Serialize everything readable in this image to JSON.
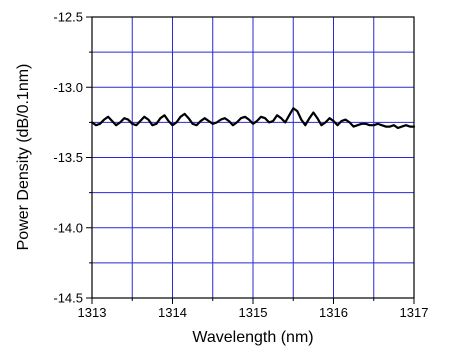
{
  "chart_data": {
    "type": "line",
    "title": "",
    "xlabel": "Wavelength (nm)",
    "ylabel": "Power Density (dB/0.1nm)",
    "xlim": [
      1313,
      1317
    ],
    "ylim": [
      -14.5,
      -12.5
    ],
    "x_ticks": [
      1313,
      1314,
      1315,
      1316,
      1317
    ],
    "x_tick_labels": [
      "1313",
      "1314",
      "1315",
      "1316",
      "1317"
    ],
    "y_ticks": [
      -12.5,
      -13.0,
      -13.5,
      -14.0,
      -14.5
    ],
    "y_tick_labels": [
      "-12.5",
      "-13.0",
      "-13.5",
      "-14.0",
      "-14.5"
    ],
    "grid": true,
    "grid_color": "#2a2ad4",
    "line_color": "#000000",
    "series": [
      {
        "x": [
          1313.0,
          1313.05,
          1313.1,
          1313.15,
          1313.2,
          1313.25,
          1313.3,
          1313.35,
          1313.4,
          1313.45,
          1313.5,
          1313.55,
          1313.6,
          1313.65,
          1313.7,
          1313.75,
          1313.8,
          1313.85,
          1313.9,
          1313.95,
          1314.0,
          1314.05,
          1314.1,
          1314.15,
          1314.2,
          1314.25,
          1314.3,
          1314.35,
          1314.4,
          1314.45,
          1314.5,
          1314.55,
          1314.6,
          1314.65,
          1314.7,
          1314.75,
          1314.8,
          1314.85,
          1314.9,
          1314.95,
          1315.0,
          1315.05,
          1315.1,
          1315.15,
          1315.2,
          1315.25,
          1315.3,
          1315.35,
          1315.4,
          1315.45,
          1315.5,
          1315.55,
          1315.6,
          1315.65,
          1315.7,
          1315.75,
          1315.8,
          1315.85,
          1315.9,
          1315.95,
          1316.0,
          1316.05,
          1316.1,
          1316.15,
          1316.2,
          1316.25,
          1316.3,
          1316.35,
          1316.4,
          1316.45,
          1316.5,
          1316.55,
          1316.6,
          1316.65,
          1316.7,
          1316.75,
          1316.8,
          1316.85,
          1316.9,
          1316.95,
          1317.0
        ],
        "y": [
          -13.25,
          -13.27,
          -13.26,
          -13.23,
          -13.21,
          -13.24,
          -13.27,
          -13.25,
          -13.22,
          -13.23,
          -13.26,
          -13.27,
          -13.24,
          -13.21,
          -13.23,
          -13.27,
          -13.26,
          -13.22,
          -13.2,
          -13.24,
          -13.27,
          -13.25,
          -13.21,
          -13.19,
          -13.22,
          -13.26,
          -13.27,
          -13.24,
          -13.22,
          -13.24,
          -13.26,
          -13.25,
          -13.23,
          -13.22,
          -13.24,
          -13.27,
          -13.25,
          -13.22,
          -13.21,
          -13.23,
          -13.26,
          -13.24,
          -13.21,
          -13.22,
          -13.25,
          -13.24,
          -13.2,
          -13.22,
          -13.25,
          -13.2,
          -13.15,
          -13.17,
          -13.23,
          -13.27,
          -13.22,
          -13.18,
          -13.22,
          -13.27,
          -13.25,
          -13.22,
          -13.24,
          -13.27,
          -13.24,
          -13.23,
          -13.25,
          -13.28,
          -13.27,
          -13.26,
          -13.26,
          -13.27,
          -13.27,
          -13.26,
          -13.27,
          -13.28,
          -13.28,
          -13.27,
          -13.29,
          -13.28,
          -13.27,
          -13.28,
          -13.28
        ]
      }
    ]
  }
}
